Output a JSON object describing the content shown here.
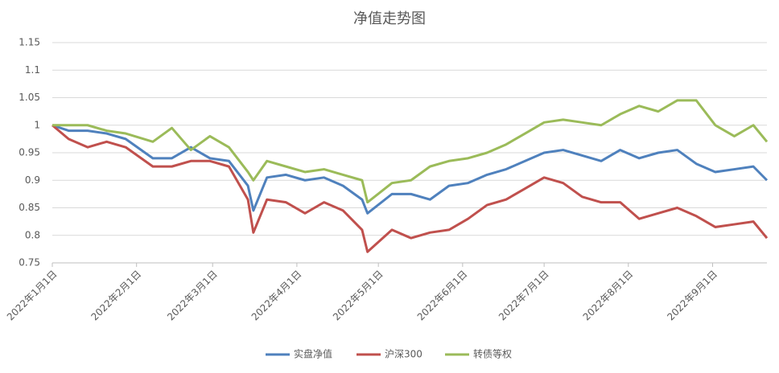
{
  "chart_data": {
    "type": "line",
    "title": "净值走势图",
    "x": [
      "2022-01-01",
      "2022-01-07",
      "2022-01-14",
      "2022-01-21",
      "2022-01-28",
      "2022-02-07",
      "2022-02-14",
      "2022-02-21",
      "2022-02-28",
      "2022-03-07",
      "2022-03-14",
      "2022-03-16",
      "2022-03-21",
      "2022-03-28",
      "2022-04-04",
      "2022-04-11",
      "2022-04-18",
      "2022-04-25",
      "2022-04-27",
      "2022-05-06",
      "2022-05-13",
      "2022-05-20",
      "2022-05-27",
      "2022-06-03",
      "2022-06-10",
      "2022-06-17",
      "2022-06-24",
      "2022-07-01",
      "2022-07-08",
      "2022-07-15",
      "2022-07-22",
      "2022-07-29",
      "2022-08-05",
      "2022-08-12",
      "2022-08-19",
      "2022-08-26",
      "2022-09-02",
      "2022-09-09",
      "2022-09-16",
      "2022-09-21"
    ],
    "series": [
      {
        "name": "实盘净值",
        "color": "#4f81bd",
        "values": [
          1.0,
          0.99,
          0.99,
          0.985,
          0.975,
          0.94,
          0.94,
          0.96,
          0.94,
          0.935,
          0.89,
          0.845,
          0.905,
          0.91,
          0.9,
          0.905,
          0.89,
          0.865,
          0.84,
          0.875,
          0.875,
          0.865,
          0.89,
          0.895,
          0.91,
          0.92,
          0.935,
          0.95,
          0.955,
          0.945,
          0.935,
          0.955,
          0.94,
          0.95,
          0.955,
          0.93,
          0.915,
          0.92,
          0.925,
          0.9
        ]
      },
      {
        "name": "沪深300",
        "color": "#c0504d",
        "values": [
          1.0,
          0.975,
          0.96,
          0.97,
          0.96,
          0.925,
          0.925,
          0.935,
          0.935,
          0.925,
          0.865,
          0.805,
          0.865,
          0.86,
          0.84,
          0.86,
          0.845,
          0.81,
          0.77,
          0.81,
          0.795,
          0.805,
          0.81,
          0.83,
          0.855,
          0.865,
          0.885,
          0.905,
          0.895,
          0.87,
          0.86,
          0.86,
          0.83,
          0.84,
          0.85,
          0.835,
          0.815,
          0.82,
          0.825,
          0.795
        ]
      },
      {
        "name": "转债等权",
        "color": "#9bbb59",
        "values": [
          1.0,
          1.0,
          1.0,
          0.99,
          0.985,
          0.97,
          0.995,
          0.955,
          0.98,
          0.96,
          0.915,
          0.9,
          0.935,
          0.925,
          0.915,
          0.92,
          0.91,
          0.9,
          0.86,
          0.895,
          0.9,
          0.925,
          0.935,
          0.94,
          0.95,
          0.965,
          0.985,
          1.005,
          1.01,
          1.005,
          1.0,
          1.02,
          1.035,
          1.025,
          1.045,
          1.045,
          1.0,
          0.98,
          1.0,
          0.97
        ]
      }
    ],
    "xlim": [
      "2022-01-01",
      "2022-09-21"
    ],
    "xticks": [
      {
        "value": "2022-01-01",
        "label": "2022年1月1日"
      },
      {
        "value": "2022-02-01",
        "label": "2022年2月1日"
      },
      {
        "value": "2022-03-01",
        "label": "2022年3月1日"
      },
      {
        "value": "2022-04-01",
        "label": "2022年4月1日"
      },
      {
        "value": "2022-05-01",
        "label": "2022年5月1日"
      },
      {
        "value": "2022-06-01",
        "label": "2022年6月1日"
      },
      {
        "value": "2022-07-01",
        "label": "2022年7月1日"
      },
      {
        "value": "2022-08-01",
        "label": "2022年8月1日"
      },
      {
        "value": "2022-09-01",
        "label": "2022年9月1日"
      }
    ],
    "ylim": [
      0.75,
      1.15
    ],
    "yticks": [
      0.75,
      0.8,
      0.85,
      0.9,
      0.95,
      1,
      1.05,
      1.1,
      1.15
    ],
    "grid": true,
    "legend": "bottom"
  }
}
